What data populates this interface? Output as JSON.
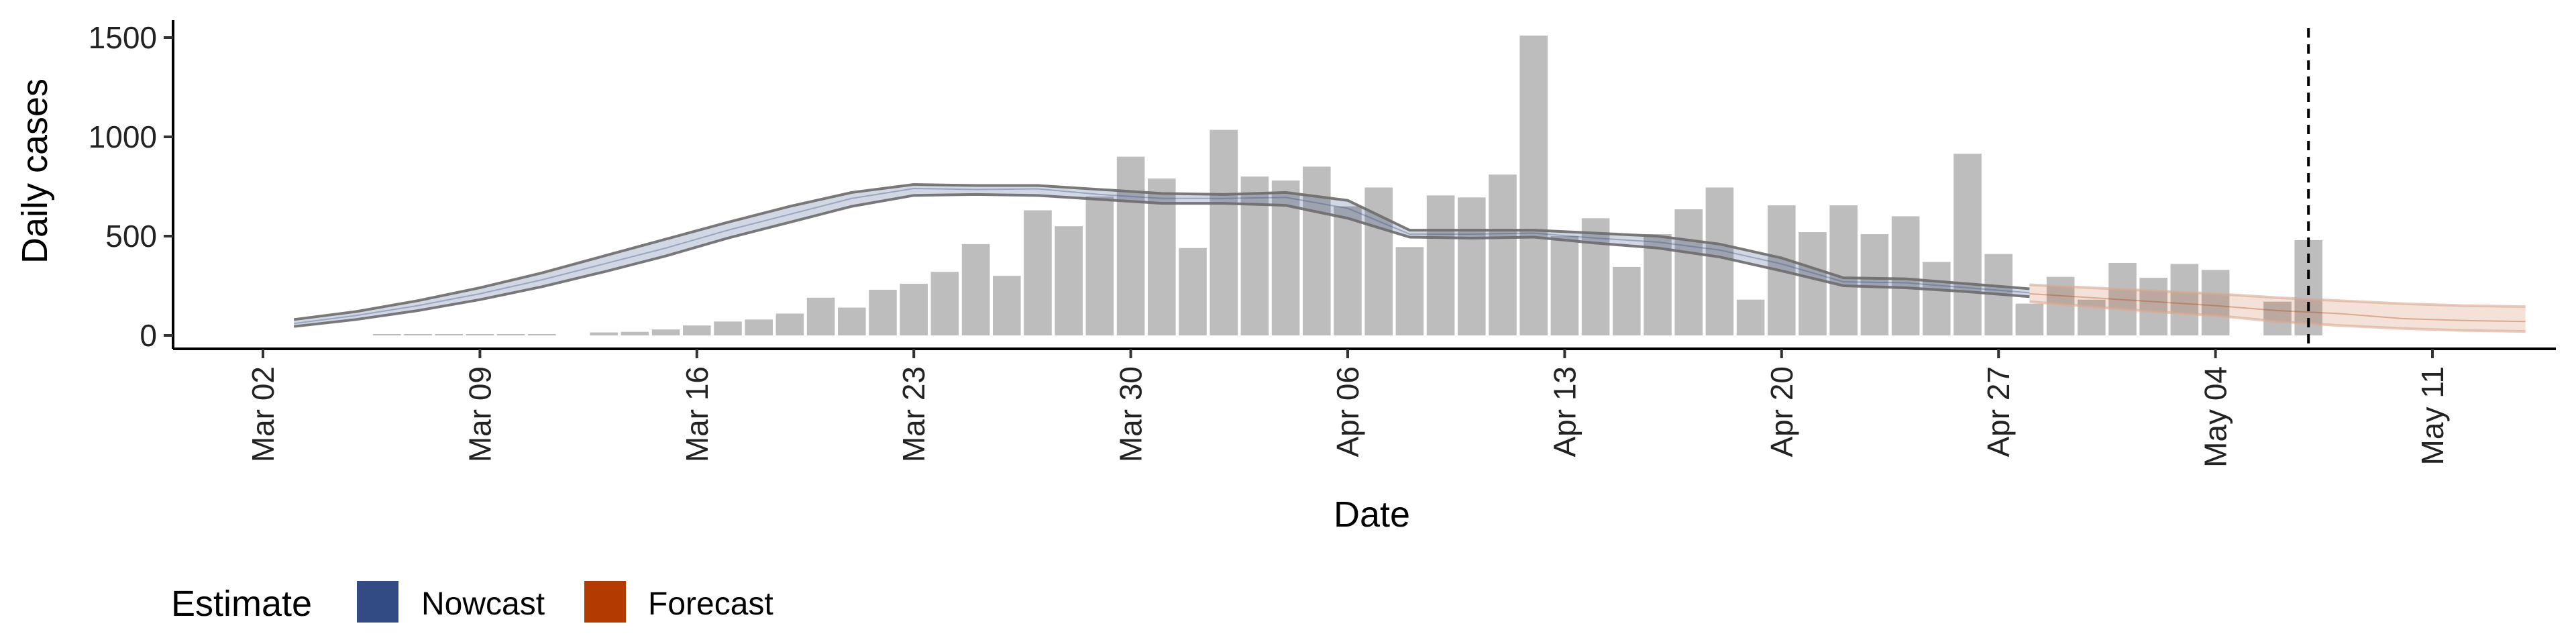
{
  "chart_data": {
    "type": "bar",
    "xlabel": "Date",
    "ylabel": "Daily cases",
    "ylim": [
      0,
      1500
    ],
    "yticks": [
      0,
      500,
      1000,
      1500
    ],
    "x_tick_labels": [
      "Mar 02",
      "Mar 09",
      "Mar 16",
      "Mar 23",
      "Mar 30",
      "Apr 06",
      "Apr 13",
      "Apr 20",
      "Apr 27",
      "May 04",
      "May 11"
    ],
    "x_tick_days": [
      0,
      7,
      14,
      21,
      28,
      35,
      42,
      49,
      56,
      63,
      70
    ],
    "date_origin": "Mar 02",
    "x_range_days": [
      -3,
      74
    ],
    "grid": false,
    "legend": {
      "placement": "bottom-left",
      "title": "Estimate",
      "entries": [
        {
          "label": "Nowcast",
          "color": "#324b84"
        },
        {
          "label": "Forecast",
          "color": "#b33b00"
        }
      ]
    },
    "vline_day": 66,
    "bars": {
      "color": "#bdbdbd",
      "days": [
        4,
        5,
        6,
        7,
        8,
        9,
        10,
        11,
        12,
        13,
        14,
        15,
        16,
        17,
        18,
        19,
        20,
        21,
        22,
        23,
        24,
        25,
        26,
        27,
        28,
        29,
        30,
        31,
        32,
        33,
        34,
        35,
        36,
        37,
        38,
        39,
        40,
        41,
        42,
        43,
        44,
        45,
        46,
        47,
        48,
        49,
        50,
        51,
        52,
        53,
        54,
        55,
        56,
        57,
        58,
        59,
        60,
        61,
        62,
        63,
        65,
        66
      ],
      "values": [
        2,
        3,
        3,
        4,
        5,
        6,
        0,
        15,
        18,
        30,
        50,
        70,
        80,
        110,
        190,
        140,
        230,
        260,
        320,
        460,
        300,
        630,
        550,
        700,
        900,
        790,
        440,
        1035,
        800,
        780,
        850,
        650,
        745,
        445,
        705,
        695,
        810,
        1510,
        500,
        590,
        345,
        510,
        635,
        745,
        180,
        655,
        520,
        655,
        510,
        600,
        370,
        915,
        410,
        160,
        295,
        180,
        365,
        290,
        360,
        330,
        170,
        480
      ]
    },
    "series": [
      {
        "name": "Nowcast",
        "color": "#324b84",
        "days": [
          1,
          3,
          5,
          7,
          9,
          11,
          13,
          15,
          17,
          19,
          21,
          23,
          25,
          27,
          29,
          31,
          33,
          35,
          37,
          39,
          41,
          43,
          45,
          47,
          49,
          51,
          53,
          55,
          57
        ],
        "median": [
          60,
          100,
          150,
          210,
          280,
          360,
          440,
          530,
          610,
          690,
          740,
          735,
          738,
          710,
          690,
          690,
          695,
          640,
          510,
          510,
          515,
          490,
          470,
          430,
          360,
          270,
          265,
          240,
          215
        ],
        "lower": [
          45,
          80,
          125,
          180,
          245,
          320,
          400,
          490,
          570,
          650,
          705,
          710,
          705,
          685,
          665,
          665,
          655,
          590,
          495,
          490,
          495,
          465,
          440,
          395,
          325,
          250,
          240,
          220,
          195
        ],
        "upper": [
          80,
          120,
          175,
          240,
          315,
          400,
          485,
          570,
          650,
          720,
          760,
          755,
          755,
          735,
          715,
          710,
          720,
          680,
          530,
          530,
          530,
          515,
          500,
          460,
          390,
          290,
          285,
          260,
          235
        ]
      },
      {
        "name": "Forecast",
        "color": "#b33b00",
        "days": [
          57,
          59,
          61,
          63,
          65,
          67,
          69,
          71,
          73
        ],
        "median": [
          210,
          190,
          170,
          150,
          125,
          110,
          85,
          75,
          70
        ],
        "lower": [
          170,
          145,
          120,
          100,
          70,
          50,
          35,
          25,
          20
        ],
        "upper": [
          255,
          240,
          225,
          210,
          190,
          175,
          160,
          150,
          145
        ]
      }
    ]
  }
}
